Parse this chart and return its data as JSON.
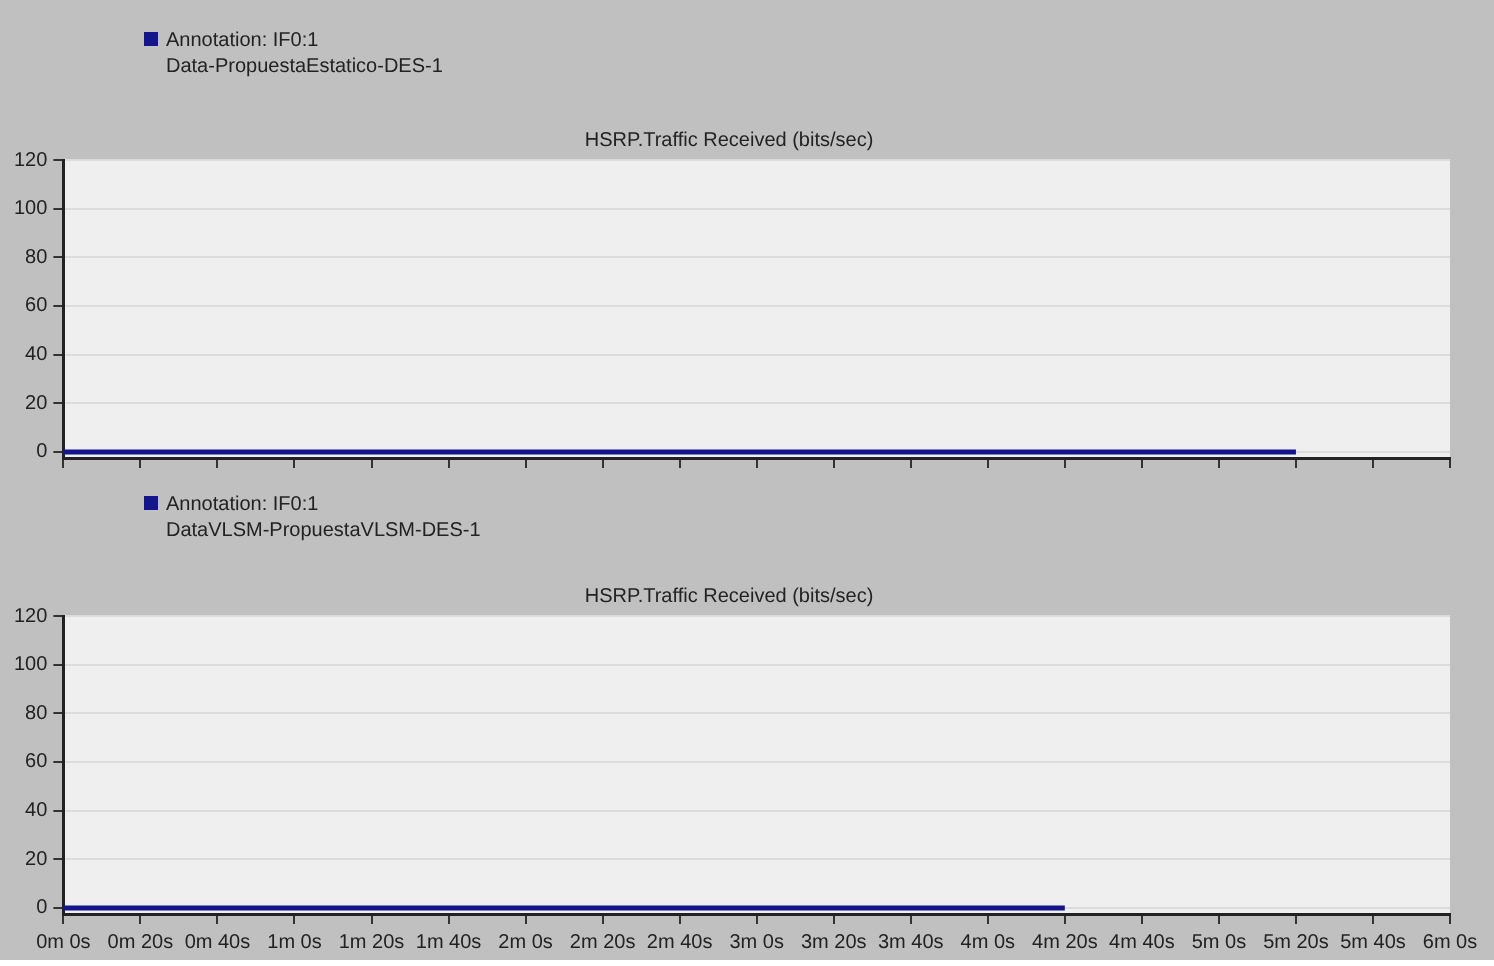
{
  "chart_data": [
    {
      "type": "line",
      "title": "HSRP.Traffic Received (bits/sec)",
      "legend": "top left",
      "grid": "y",
      "tick_labels": "y",
      "marker": "none",
      "categories": [
        null,
        null,
        null,
        null,
        null,
        null,
        null,
        null,
        null,
        null,
        null,
        null,
        null,
        null,
        null,
        null,
        null,
        null,
        null
      ],
      "series": [
        {
          "name": "Annotation: IF0:1\nData-PropuestaEstatico-DES-1",
          "color": "#14148c",
          "values": [
            0,
            0,
            0,
            0,
            0,
            0,
            0,
            0,
            0,
            0,
            0,
            0,
            0,
            0,
            0,
            0,
            0,
            null,
            null
          ]
        }
      ],
      "ylim": [
        -2.5,
        120
      ],
      "yticks": [
        0,
        20,
        40,
        60,
        80,
        100,
        120
      ]
    },
    {
      "type": "line",
      "title": "HSRP.Traffic Received (bits/sec)",
      "legend": "top left",
      "grid": "y",
      "marker": "none",
      "categories": [
        "0m 0s",
        "0m 20s",
        "0m 40s",
        "1m 0s",
        "1m 20s",
        "1m 40s",
        "2m 0s",
        "2m 20s",
        "2m 40s",
        "3m 0s",
        "3m 20s",
        "3m 40s",
        "4m 0s",
        "4m 20s",
        "4m 40s",
        "5m 0s",
        "5m 20s",
        "5m 40s",
        "6m 0s"
      ],
      "series": [
        {
          "name": "Annotation: IF0:1\nDataVLSM-PropuestaVLSM-DES-1",
          "color": "#14148c",
          "values": [
            0,
            0,
            0,
            0,
            0,
            0,
            0,
            0,
            0,
            0,
            0,
            0,
            0,
            0,
            null,
            null,
            null,
            null,
            null
          ]
        }
      ],
      "ylim": [
        -2.5,
        120
      ],
      "yticks": [
        0,
        20,
        40,
        60,
        80,
        100,
        120
      ]
    }
  ]
}
